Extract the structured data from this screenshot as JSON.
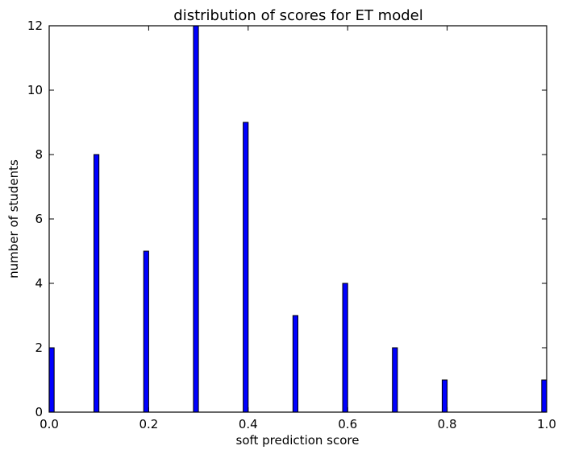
{
  "chart_data": {
    "type": "bar",
    "title": "distribution of scores for ET model",
    "xlabel": "soft prediction score",
    "ylabel": "number of students",
    "xlim": [
      0.0,
      1.0
    ],
    "ylim": [
      0,
      12
    ],
    "xticks": [
      "0.0",
      "0.2",
      "0.4",
      "0.6",
      "0.8",
      "1.0"
    ],
    "xtick_values": [
      0.0,
      0.2,
      0.4,
      0.6,
      0.8,
      1.0
    ],
    "yticks": [
      "0",
      "2",
      "4",
      "6",
      "8",
      "10",
      "12"
    ],
    "ytick_values": [
      0,
      2,
      4,
      6,
      8,
      10,
      12
    ],
    "grid": false,
    "bar_color": "#0000ff",
    "bar_edge_color": "#000000",
    "bin_width": 0.01,
    "series": [
      {
        "x": [
          0.0,
          0.09,
          0.19,
          0.29,
          0.39,
          0.49,
          0.59,
          0.69,
          0.79,
          0.99
        ],
        "values": [
          2,
          8,
          5,
          12,
          9,
          3,
          4,
          2,
          1,
          1
        ]
      }
    ]
  }
}
